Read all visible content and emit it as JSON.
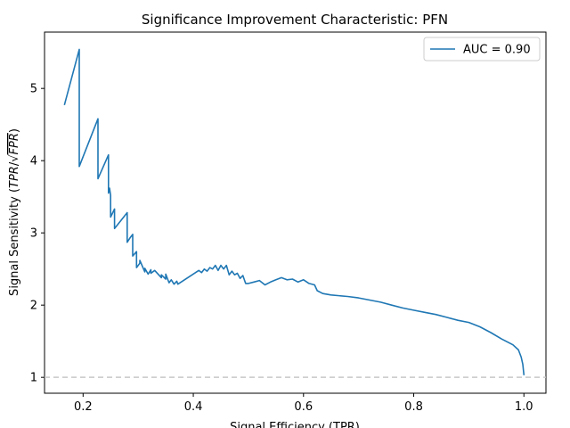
{
  "chart_data": {
    "type": "line",
    "title": "Significance Improvement Characteristic: PFN",
    "xlabel": "Signal Efficiency (TPR)",
    "ylabel_prefix": "Signal Sensitivity (",
    "ylabel_tpr": "TPR",
    "ylabel_slash": "/√",
    "ylabel_fpr": "FPR",
    "ylabel_suffix": ")",
    "xlim": [
      0.13,
      1.04
    ],
    "ylim": [
      0.78,
      5.78
    ],
    "xticks": [
      0.2,
      0.4,
      0.6,
      0.8,
      1.0
    ],
    "xtick_labels": [
      "0.2",
      "0.4",
      "0.6",
      "0.8",
      "1.0"
    ],
    "yticks": [
      1,
      2,
      3,
      4,
      5
    ],
    "ytick_labels": [
      "1",
      "2",
      "3",
      "4",
      "5"
    ],
    "grid": false,
    "legend_position": "upper right",
    "reference_line": {
      "y": 1.0,
      "style": "dashed",
      "color": "#c7c7c7"
    },
    "series": [
      {
        "name": "AUC = 0.90",
        "color": "#1f77b4",
        "x": [
          0.166,
          0.193,
          0.193,
          0.227,
          0.227,
          0.246,
          0.246,
          0.248,
          0.25,
          0.25,
          0.257,
          0.257,
          0.28,
          0.28,
          0.285,
          0.29,
          0.29,
          0.297,
          0.297,
          0.303,
          0.303,
          0.312,
          0.312,
          0.318,
          0.323,
          0.323,
          0.33,
          0.342,
          0.342,
          0.35,
          0.35,
          0.356,
          0.36,
          0.365,
          0.37,
          0.372,
          0.38,
          0.41,
          0.415,
          0.42,
          0.425,
          0.43,
          0.435,
          0.44,
          0.445,
          0.45,
          0.455,
          0.46,
          0.465,
          0.47,
          0.475,
          0.48,
          0.485,
          0.49,
          0.495,
          0.5,
          0.51,
          0.52,
          0.53,
          0.54,
          0.55,
          0.56,
          0.57,
          0.58,
          0.59,
          0.6,
          0.61,
          0.62,
          0.625,
          0.635,
          0.65,
          0.68,
          0.7,
          0.72,
          0.74,
          0.76,
          0.78,
          0.8,
          0.82,
          0.84,
          0.86,
          0.88,
          0.9,
          0.92,
          0.94,
          0.96,
          0.98,
          0.99,
          0.995,
          0.998,
          1.0
        ],
        "y": [
          4.77,
          5.54,
          3.92,
          4.58,
          3.75,
          4.08,
          3.55,
          3.62,
          3.52,
          3.22,
          3.33,
          3.06,
          3.28,
          2.87,
          2.93,
          2.98,
          2.68,
          2.74,
          2.52,
          2.58,
          2.62,
          2.46,
          2.51,
          2.43,
          2.49,
          2.44,
          2.48,
          2.38,
          2.42,
          2.36,
          2.43,
          2.31,
          2.35,
          2.29,
          2.33,
          2.29,
          2.33,
          2.48,
          2.45,
          2.5,
          2.47,
          2.52,
          2.5,
          2.55,
          2.48,
          2.55,
          2.5,
          2.55,
          2.42,
          2.47,
          2.42,
          2.44,
          2.37,
          2.41,
          2.3,
          2.3,
          2.32,
          2.34,
          2.28,
          2.32,
          2.35,
          2.38,
          2.35,
          2.36,
          2.32,
          2.35,
          2.3,
          2.28,
          2.2,
          2.16,
          2.14,
          2.12,
          2.1,
          2.07,
          2.04,
          2.0,
          1.96,
          1.93,
          1.9,
          1.87,
          1.83,
          1.79,
          1.76,
          1.7,
          1.62,
          1.53,
          1.45,
          1.38,
          1.28,
          1.18,
          1.03
        ]
      }
    ]
  }
}
